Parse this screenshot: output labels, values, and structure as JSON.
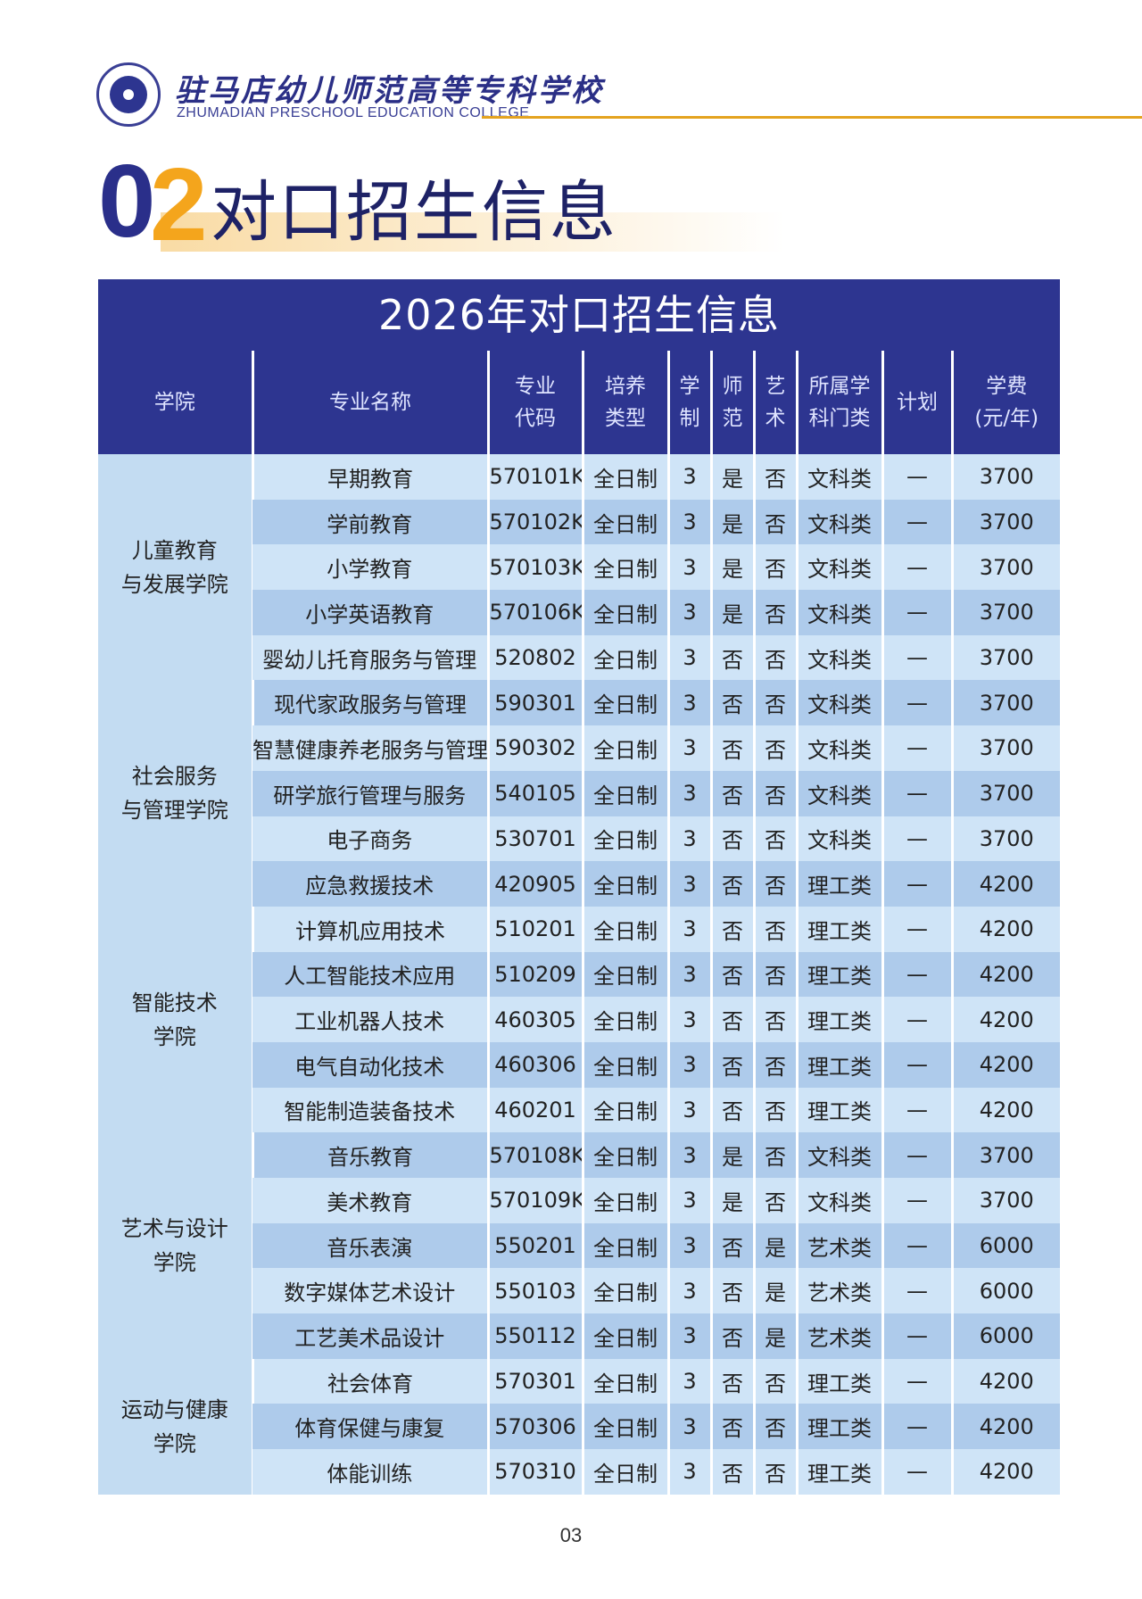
{
  "header": {
    "college_cn": "驻马店幼儿师范高等专科学校",
    "college_en": "ZHUMADIAN PRESCHOOL EDUCATION COLLEGE",
    "brand_color": "#2d3590",
    "accent_color": "#f4a51c"
  },
  "section": {
    "num_first": "0",
    "num_second": "2",
    "title": "对口招生信息"
  },
  "table": {
    "title": "2026年对口招生信息",
    "headers": {
      "college": "学院",
      "major": "专业名称",
      "code_l1": "专业",
      "code_l2": "代码",
      "type_l1": "培养",
      "type_l2": "类型",
      "years_l1": "学",
      "years_l2": "制",
      "normal_l1": "师",
      "normal_l2": "范",
      "art_l1": "艺",
      "art_l2": "术",
      "category_l1": "所属学",
      "category_l2": "科门类",
      "plan": "计划",
      "fee_l1": "学费",
      "fee_l2": "(元/年)"
    },
    "groups": [
      {
        "college_l1": "儿童教育",
        "college_l2": "与发展学院",
        "rows": [
          {
            "major": "早期教育",
            "code": "570101K",
            "type": "全日制",
            "years": "3",
            "normal": "是",
            "art": "否",
            "category": "文科类",
            "plan": "—",
            "fee": "3700"
          },
          {
            "major": "学前教育",
            "code": "570102K",
            "type": "全日制",
            "years": "3",
            "normal": "是",
            "art": "否",
            "category": "文科类",
            "plan": "—",
            "fee": "3700"
          },
          {
            "major": "小学教育",
            "code": "570103K",
            "type": "全日制",
            "years": "3",
            "normal": "是",
            "art": "否",
            "category": "文科类",
            "plan": "—",
            "fee": "3700"
          },
          {
            "major": "小学英语教育",
            "code": "570106K",
            "type": "全日制",
            "years": "3",
            "normal": "是",
            "art": "否",
            "category": "文科类",
            "plan": "—",
            "fee": "3700"
          },
          {
            "major": "婴幼儿托育服务与管理",
            "code": "520802",
            "type": "全日制",
            "years": "3",
            "normal": "否",
            "art": "否",
            "category": "文科类",
            "plan": "—",
            "fee": "3700"
          }
        ]
      },
      {
        "college_l1": "社会服务",
        "college_l2": "与管理学院",
        "rows": [
          {
            "major": "现代家政服务与管理",
            "code": "590301",
            "type": "全日制",
            "years": "3",
            "normal": "否",
            "art": "否",
            "category": "文科类",
            "plan": "—",
            "fee": "3700"
          },
          {
            "major": "智慧健康养老服务与管理",
            "code": "590302",
            "type": "全日制",
            "years": "3",
            "normal": "否",
            "art": "否",
            "category": "文科类",
            "plan": "—",
            "fee": "3700"
          },
          {
            "major": "研学旅行管理与服务",
            "code": "540105",
            "type": "全日制",
            "years": "3",
            "normal": "否",
            "art": "否",
            "category": "文科类",
            "plan": "—",
            "fee": "3700"
          },
          {
            "major": "电子商务",
            "code": "530701",
            "type": "全日制",
            "years": "3",
            "normal": "否",
            "art": "否",
            "category": "文科类",
            "plan": "—",
            "fee": "3700"
          },
          {
            "major": "应急救援技术",
            "code": "420905",
            "type": "全日制",
            "years": "3",
            "normal": "否",
            "art": "否",
            "category": "理工类",
            "plan": "—",
            "fee": "4200"
          }
        ]
      },
      {
        "college_l1": "智能技术",
        "college_l2": "学院",
        "rows": [
          {
            "major": "计算机应用技术",
            "code": "510201",
            "type": "全日制",
            "years": "3",
            "normal": "否",
            "art": "否",
            "category": "理工类",
            "plan": "—",
            "fee": "4200"
          },
          {
            "major": "人工智能技术应用",
            "code": "510209",
            "type": "全日制",
            "years": "3",
            "normal": "否",
            "art": "否",
            "category": "理工类",
            "plan": "—",
            "fee": "4200"
          },
          {
            "major": "工业机器人技术",
            "code": "460305",
            "type": "全日制",
            "years": "3",
            "normal": "否",
            "art": "否",
            "category": "理工类",
            "plan": "—",
            "fee": "4200"
          },
          {
            "major": "电气自动化技术",
            "code": "460306",
            "type": "全日制",
            "years": "3",
            "normal": "否",
            "art": "否",
            "category": "理工类",
            "plan": "—",
            "fee": "4200"
          },
          {
            "major": "智能制造装备技术",
            "code": "460201",
            "type": "全日制",
            "years": "3",
            "normal": "否",
            "art": "否",
            "category": "理工类",
            "plan": "—",
            "fee": "4200"
          }
        ]
      },
      {
        "college_l1": "艺术与设计",
        "college_l2": "学院",
        "rows": [
          {
            "major": "音乐教育",
            "code": "570108K",
            "type": "全日制",
            "years": "3",
            "normal": "是",
            "art": "否",
            "category": "文科类",
            "plan": "—",
            "fee": "3700"
          },
          {
            "major": "美术教育",
            "code": "570109K",
            "type": "全日制",
            "years": "3",
            "normal": "是",
            "art": "否",
            "category": "文科类",
            "plan": "—",
            "fee": "3700"
          },
          {
            "major": "音乐表演",
            "code": "550201",
            "type": "全日制",
            "years": "3",
            "normal": "否",
            "art": "是",
            "category": "艺术类",
            "plan": "—",
            "fee": "6000"
          },
          {
            "major": "数字媒体艺术设计",
            "code": "550103",
            "type": "全日制",
            "years": "3",
            "normal": "否",
            "art": "是",
            "category": "艺术类",
            "plan": "—",
            "fee": "6000"
          },
          {
            "major": "工艺美术品设计",
            "code": "550112",
            "type": "全日制",
            "years": "3",
            "normal": "否",
            "art": "是",
            "category": "艺术类",
            "plan": "—",
            "fee": "6000"
          }
        ]
      },
      {
        "college_l1": "运动与健康",
        "college_l2": "学院",
        "rows": [
          {
            "major": "社会体育",
            "code": "570301",
            "type": "全日制",
            "years": "3",
            "normal": "否",
            "art": "否",
            "category": "理工类",
            "plan": "—",
            "fee": "4200"
          },
          {
            "major": "体育保健与康复",
            "code": "570306",
            "type": "全日制",
            "years": "3",
            "normal": "否",
            "art": "否",
            "category": "理工类",
            "plan": "—",
            "fee": "4200"
          },
          {
            "major": "体能训练",
            "code": "570310",
            "type": "全日制",
            "years": "3",
            "normal": "否",
            "art": "否",
            "category": "理工类",
            "plan": "—",
            "fee": "4200"
          }
        ]
      }
    ]
  },
  "page_number": "03"
}
